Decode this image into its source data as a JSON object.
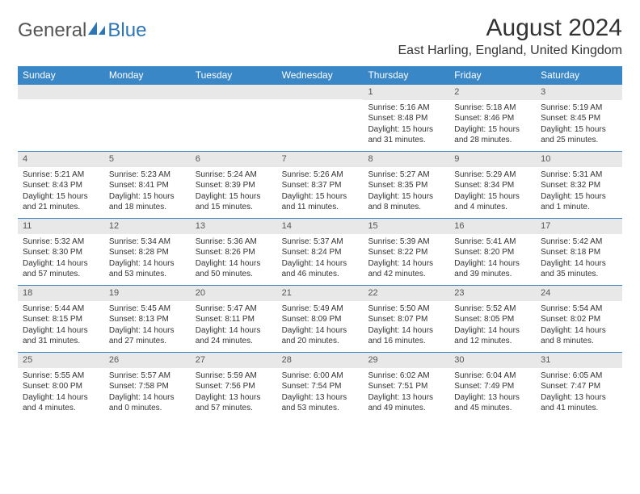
{
  "logo": {
    "text1": "General",
    "text2": "Blue"
  },
  "title": "August 2024",
  "location": "East Harling, England, United Kingdom",
  "colors": {
    "header_bg": "#3a87c8",
    "header_text": "#ffffff",
    "daynum_bg": "#e8e8e8",
    "week_border": "#3a87c8",
    "logo_blue": "#2d76b5",
    "logo_gray": "#555555",
    "text": "#333333",
    "background": "#ffffff"
  },
  "day_names": [
    "Sunday",
    "Monday",
    "Tuesday",
    "Wednesday",
    "Thursday",
    "Friday",
    "Saturday"
  ],
  "weeks": [
    [
      {
        "n": "",
        "sr": "",
        "ss": "",
        "dl": ""
      },
      {
        "n": "",
        "sr": "",
        "ss": "",
        "dl": ""
      },
      {
        "n": "",
        "sr": "",
        "ss": "",
        "dl": ""
      },
      {
        "n": "",
        "sr": "",
        "ss": "",
        "dl": ""
      },
      {
        "n": "1",
        "sr": "Sunrise: 5:16 AM",
        "ss": "Sunset: 8:48 PM",
        "dl": "Daylight: 15 hours and 31 minutes."
      },
      {
        "n": "2",
        "sr": "Sunrise: 5:18 AM",
        "ss": "Sunset: 8:46 PM",
        "dl": "Daylight: 15 hours and 28 minutes."
      },
      {
        "n": "3",
        "sr": "Sunrise: 5:19 AM",
        "ss": "Sunset: 8:45 PM",
        "dl": "Daylight: 15 hours and 25 minutes."
      }
    ],
    [
      {
        "n": "4",
        "sr": "Sunrise: 5:21 AM",
        "ss": "Sunset: 8:43 PM",
        "dl": "Daylight: 15 hours and 21 minutes."
      },
      {
        "n": "5",
        "sr": "Sunrise: 5:23 AM",
        "ss": "Sunset: 8:41 PM",
        "dl": "Daylight: 15 hours and 18 minutes."
      },
      {
        "n": "6",
        "sr": "Sunrise: 5:24 AM",
        "ss": "Sunset: 8:39 PM",
        "dl": "Daylight: 15 hours and 15 minutes."
      },
      {
        "n": "7",
        "sr": "Sunrise: 5:26 AM",
        "ss": "Sunset: 8:37 PM",
        "dl": "Daylight: 15 hours and 11 minutes."
      },
      {
        "n": "8",
        "sr": "Sunrise: 5:27 AM",
        "ss": "Sunset: 8:35 PM",
        "dl": "Daylight: 15 hours and 8 minutes."
      },
      {
        "n": "9",
        "sr": "Sunrise: 5:29 AM",
        "ss": "Sunset: 8:34 PM",
        "dl": "Daylight: 15 hours and 4 minutes."
      },
      {
        "n": "10",
        "sr": "Sunrise: 5:31 AM",
        "ss": "Sunset: 8:32 PM",
        "dl": "Daylight: 15 hours and 1 minute."
      }
    ],
    [
      {
        "n": "11",
        "sr": "Sunrise: 5:32 AM",
        "ss": "Sunset: 8:30 PM",
        "dl": "Daylight: 14 hours and 57 minutes."
      },
      {
        "n": "12",
        "sr": "Sunrise: 5:34 AM",
        "ss": "Sunset: 8:28 PM",
        "dl": "Daylight: 14 hours and 53 minutes."
      },
      {
        "n": "13",
        "sr": "Sunrise: 5:36 AM",
        "ss": "Sunset: 8:26 PM",
        "dl": "Daylight: 14 hours and 50 minutes."
      },
      {
        "n": "14",
        "sr": "Sunrise: 5:37 AM",
        "ss": "Sunset: 8:24 PM",
        "dl": "Daylight: 14 hours and 46 minutes."
      },
      {
        "n": "15",
        "sr": "Sunrise: 5:39 AM",
        "ss": "Sunset: 8:22 PM",
        "dl": "Daylight: 14 hours and 42 minutes."
      },
      {
        "n": "16",
        "sr": "Sunrise: 5:41 AM",
        "ss": "Sunset: 8:20 PM",
        "dl": "Daylight: 14 hours and 39 minutes."
      },
      {
        "n": "17",
        "sr": "Sunrise: 5:42 AM",
        "ss": "Sunset: 8:18 PM",
        "dl": "Daylight: 14 hours and 35 minutes."
      }
    ],
    [
      {
        "n": "18",
        "sr": "Sunrise: 5:44 AM",
        "ss": "Sunset: 8:15 PM",
        "dl": "Daylight: 14 hours and 31 minutes."
      },
      {
        "n": "19",
        "sr": "Sunrise: 5:45 AM",
        "ss": "Sunset: 8:13 PM",
        "dl": "Daylight: 14 hours and 27 minutes."
      },
      {
        "n": "20",
        "sr": "Sunrise: 5:47 AM",
        "ss": "Sunset: 8:11 PM",
        "dl": "Daylight: 14 hours and 24 minutes."
      },
      {
        "n": "21",
        "sr": "Sunrise: 5:49 AM",
        "ss": "Sunset: 8:09 PM",
        "dl": "Daylight: 14 hours and 20 minutes."
      },
      {
        "n": "22",
        "sr": "Sunrise: 5:50 AM",
        "ss": "Sunset: 8:07 PM",
        "dl": "Daylight: 14 hours and 16 minutes."
      },
      {
        "n": "23",
        "sr": "Sunrise: 5:52 AM",
        "ss": "Sunset: 8:05 PM",
        "dl": "Daylight: 14 hours and 12 minutes."
      },
      {
        "n": "24",
        "sr": "Sunrise: 5:54 AM",
        "ss": "Sunset: 8:02 PM",
        "dl": "Daylight: 14 hours and 8 minutes."
      }
    ],
    [
      {
        "n": "25",
        "sr": "Sunrise: 5:55 AM",
        "ss": "Sunset: 8:00 PM",
        "dl": "Daylight: 14 hours and 4 minutes."
      },
      {
        "n": "26",
        "sr": "Sunrise: 5:57 AM",
        "ss": "Sunset: 7:58 PM",
        "dl": "Daylight: 14 hours and 0 minutes."
      },
      {
        "n": "27",
        "sr": "Sunrise: 5:59 AM",
        "ss": "Sunset: 7:56 PM",
        "dl": "Daylight: 13 hours and 57 minutes."
      },
      {
        "n": "28",
        "sr": "Sunrise: 6:00 AM",
        "ss": "Sunset: 7:54 PM",
        "dl": "Daylight: 13 hours and 53 minutes."
      },
      {
        "n": "29",
        "sr": "Sunrise: 6:02 AM",
        "ss": "Sunset: 7:51 PM",
        "dl": "Daylight: 13 hours and 49 minutes."
      },
      {
        "n": "30",
        "sr": "Sunrise: 6:04 AM",
        "ss": "Sunset: 7:49 PM",
        "dl": "Daylight: 13 hours and 45 minutes."
      },
      {
        "n": "31",
        "sr": "Sunrise: 6:05 AM",
        "ss": "Sunset: 7:47 PM",
        "dl": "Daylight: 13 hours and 41 minutes."
      }
    ]
  ]
}
